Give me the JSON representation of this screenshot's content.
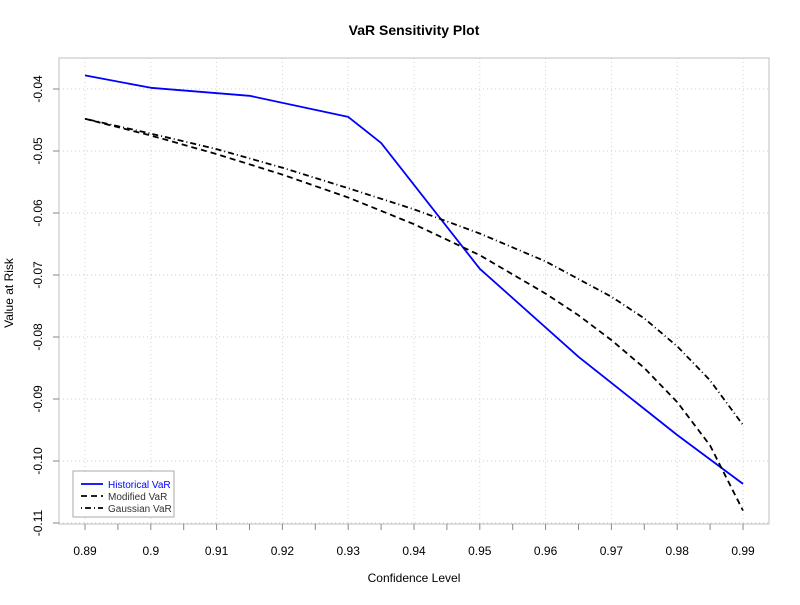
{
  "chart_data": {
    "type": "line",
    "title": "VaR Sensitivity Plot",
    "xlabel": "Confidence Level",
    "ylabel": "Value at Risk",
    "xlim": [
      0.89,
      0.99
    ],
    "ylim": [
      -0.11,
      -0.04
    ],
    "x_ticks": [
      0.89,
      0.895,
      0.9,
      0.905,
      0.91,
      0.915,
      0.92,
      0.925,
      0.93,
      0.935,
      0.94,
      0.945,
      0.95,
      0.955,
      0.96,
      0.965,
      0.97,
      0.975,
      0.98,
      0.985,
      0.99
    ],
    "x_tick_labels": [
      "0.89",
      "",
      "0.9",
      "",
      "0.91",
      "",
      "0.92",
      "",
      "0.93",
      "",
      "0.94",
      "",
      "0.95",
      "",
      "0.96",
      "",
      "0.97",
      "",
      "0.98",
      "",
      "0.99"
    ],
    "y_ticks": [
      -0.04,
      -0.05,
      -0.06,
      -0.07,
      -0.08,
      -0.09,
      -0.1,
      -0.11
    ],
    "y_tick_labels": [
      "-0.04",
      "-0.05",
      "-0.06",
      "-0.07",
      "-0.08",
      "-0.09",
      "-0.10",
      "-0.11"
    ],
    "grid": true,
    "legend_position": "bottom-left",
    "series": [
      {
        "name": "Historical VaR",
        "color": "#0000ff",
        "line_style": "solid",
        "x": [
          0.89,
          0.9,
          0.915,
          0.93,
          0.935,
          0.95,
          0.965,
          0.98,
          0.99
        ],
        "y": [
          -0.0378,
          -0.0398,
          -0.0411,
          -0.0445,
          -0.0487,
          -0.069,
          -0.0832,
          -0.0958,
          -0.1037
        ]
      },
      {
        "name": "Modified VaR",
        "color": "#000000",
        "line_style": "dashed",
        "x": [
          0.89,
          0.9,
          0.91,
          0.92,
          0.93,
          0.94,
          0.95,
          0.96,
          0.965,
          0.97,
          0.975,
          0.98,
          0.985,
          0.99
        ],
        "y": [
          -0.0448,
          -0.0475,
          -0.0505,
          -0.0538,
          -0.0575,
          -0.0618,
          -0.0668,
          -0.073,
          -0.0765,
          -0.0805,
          -0.085,
          -0.0905,
          -0.0975,
          -0.108
        ]
      },
      {
        "name": "Gaussian VaR",
        "color": "#000000",
        "line_style": "dotdash",
        "x": [
          0.89,
          0.9,
          0.91,
          0.92,
          0.93,
          0.94,
          0.95,
          0.96,
          0.97,
          0.975,
          0.98,
          0.985,
          0.99
        ],
        "y": [
          -0.0448,
          -0.0472,
          -0.0497,
          -0.0527,
          -0.056,
          -0.0594,
          -0.0633,
          -0.0678,
          -0.0735,
          -0.077,
          -0.0815,
          -0.087,
          -0.0942
        ]
      }
    ]
  }
}
